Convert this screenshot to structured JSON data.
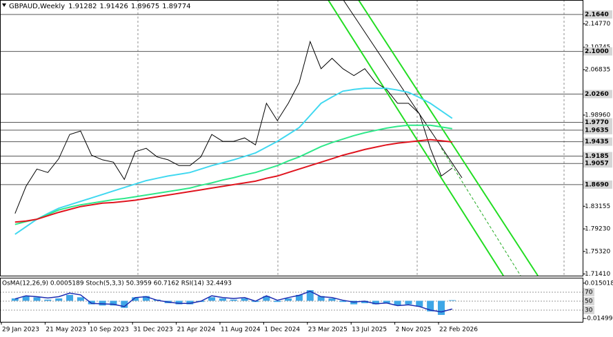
{
  "chart_data": [
    {
      "type": "line",
      "title": "GBPAUD,Weekly",
      "ohlc": [
        1.91282,
        1.91426,
        1.89675,
        1.89774
      ],
      "ylim": [
        1.7112,
        2.1891
      ],
      "yticks": [
        {
          "value": 2.1477,
          "label": "2.14770"
        },
        2.10745,
        2.06835,
        {
          "value": 1.9896,
          "label": "1.98960"
        },
        1.83155,
        {
          "value": 1.7923,
          "label": "1.79230"
        },
        {
          "value": 1.7532,
          "label": "1.75320"
        },
        {
          "value": 1.7141,
          "label": "1.71410"
        }
      ],
      "levels": [
        {
          "value": 2.164,
          "label": "2.1640"
        },
        {
          "value": 2.1,
          "label": "2.1000"
        },
        {
          "value": 2.026,
          "label": "2.0260"
        },
        {
          "value": 1.977,
          "label": "1.9770"
        },
        {
          "value": 1.9635,
          "label": "1.9635"
        },
        {
          "value": 1.9435,
          "label": "1.9435"
        },
        {
          "value": 1.9185,
          "label": "1.9185"
        },
        {
          "value": 1.9057,
          "label": "1.9057"
        },
        {
          "value": 1.869,
          "label": "1.8690"
        }
      ],
      "xticks": [
        "29 Jan 2023",
        "21 May 2023",
        "10 Sep 2023",
        "31 Dec 2023",
        "21 Apr 2024",
        "11 Aug 2024",
        "1 Dec 2024",
        "23 Mar 2025",
        "13 Jul 2025",
        "2 Nov 2025",
        "22 Feb 2026"
      ],
      "x": [
        "5 Mar 2023",
        "2 Apr 2023",
        "30 Apr 2023",
        "28 May 2023",
        "25 Jun 2023",
        "23 Jul 2023",
        "20 Aug 2023",
        "17 Sep 2023",
        "15 Oct 2023",
        "12 Nov 2023",
        "10 Dec 2023",
        "7 Jan 2024",
        "4 Feb 2024",
        "3 Mar 2024",
        "31 Mar 2024",
        "28 Apr 2024",
        "26 May 2024",
        "23 Jun 2024",
        "21 Jul 2024",
        "18 Aug 2024",
        "15 Sep 2024",
        "13 Oct 2024",
        "10 Nov 2024",
        "8 Dec 2024",
        "5 Jan 2025",
        "2 Feb 2025",
        "2 Mar 2025",
        "30 Mar 2025",
        "27 Apr 2025",
        "25 May 2025",
        "22 Jun 2025",
        "20 Jul 2025",
        "17 Aug 2025",
        "14 Sep 2025",
        "12 Oct 2025",
        "9 Nov 2025",
        "7 Dec 2025",
        "4 Jan 2026",
        "1 Feb 2026",
        "1 Mar 2026",
        "29 Mar 2026"
      ],
      "series": [
        {
          "color": "#000000",
          "values": [
            1.819,
            1.866,
            1.896,
            1.89,
            1.914,
            1.956,
            1.962,
            1.92,
            1.912,
            1.908,
            1.878,
            1.926,
            1.932,
            1.917,
            1.912,
            1.902,
            1.902,
            1.917,
            1.956,
            1.944,
            1.944,
            1.95,
            1.938,
            2.01,
            1.98,
            2.01,
            2.046,
            2.117,
            2.07,
            2.088,
            2.07,
            2.058,
            2.07,
            2.046,
            2.034,
            2.01,
            2.01,
            1.992,
            1.932,
            1.884,
            1.89774
          ]
        },
        {
          "color": "#40d8f0",
          "values": [
            1.783,
            1.796,
            1.809,
            1.819,
            1.828,
            1.834,
            1.84,
            1.846,
            1.852,
            1.858,
            1.864,
            1.87,
            1.876,
            1.88,
            1.884,
            1.887,
            1.89,
            1.896,
            1.902,
            1.907,
            1.912,
            1.918,
            1.924,
            1.934,
            1.944,
            1.956,
            1.968,
            1.989,
            2.01,
            2.021,
            2.031,
            2.034,
            2.036,
            2.036,
            2.036,
            2.033,
            2.029,
            2.02,
            2.01,
            1.997,
            1.984
          ]
        },
        {
          "color": "#2ee88a",
          "values": [
            1.8,
            1.805,
            1.809,
            1.817,
            1.825,
            1.83,
            1.834,
            1.837,
            1.84,
            1.843,
            1.845,
            1.848,
            1.851,
            1.854,
            1.857,
            1.86,
            1.863,
            1.868,
            1.872,
            1.877,
            1.881,
            1.886,
            1.89,
            1.896,
            1.902,
            1.91,
            1.917,
            1.926,
            1.935,
            1.942,
            1.948,
            1.954,
            1.959,
            1.963,
            1.967,
            1.97,
            1.972,
            1.972,
            1.972,
            1.969,
            1.966
          ]
        },
        {
          "color": "#e0141e",
          "values": [
            1.804,
            1.806,
            1.809,
            1.815,
            1.821,
            1.826,
            1.831,
            1.834,
            1.837,
            1.838,
            1.84,
            1.842,
            1.845,
            1.848,
            1.851,
            1.854,
            1.857,
            1.86,
            1.863,
            1.866,
            1.869,
            1.872,
            1.875,
            1.88,
            1.884,
            1.89,
            1.896,
            1.902,
            1.908,
            1.914,
            1.92,
            1.925,
            1.93,
            1.934,
            1.938,
            1.941,
            1.943,
            1.945,
            1.947,
            1.945,
            1.943
          ]
        }
      ]
    },
    {
      "type": "bar",
      "title": "OsMA(12,26,9) 0.0005189  Stoch(5,3,3) 50.3959 60.7162  RSI(14) 32.4493",
      "ylim": [
        -0.0179,
        0.0196
      ],
      "yticks": [
        0.015018,
        -0.014995
      ],
      "y2lim": [
        3.8,
        102.3
      ],
      "y2ticks": [
        70,
        50,
        30
      ],
      "grid": true,
      "series": [
        {
          "color": "#3ea6e6",
          "values": [
            0.002,
            0.004,
            0.003,
            0.001,
            0.002,
            0.005,
            0.003,
            -0.003,
            -0.004,
            -0.004,
            -0.006,
            0.003,
            0.004,
            0.001,
            -0.002,
            -0.003,
            -0.003,
            -0.001,
            0.003,
            0.002,
            0.001,
            0.002,
            -0.001,
            0.004,
            -0.001,
            0.002,
            0.005,
            0.009,
            0.004,
            0.002,
            -0.001,
            -0.003,
            -0.002,
            -0.003,
            -0.002,
            -0.004,
            -0.003,
            -0.005,
            -0.009,
            -0.012,
            0.0005189
          ]
        },
        {
          "color": "#1b2bb0",
          "axis": "y2",
          "values": [
            55,
            62,
            60,
            57,
            60,
            68,
            64,
            45,
            44,
            43,
            38,
            58,
            60,
            52,
            48,
            45,
            45,
            50,
            62,
            58,
            56,
            58,
            50,
            62,
            52,
            58,
            63,
            72,
            60,
            58,
            52,
            48,
            50,
            44,
            46,
            40,
            42,
            38,
            30,
            26,
            32.4493
          ]
        }
      ]
    }
  ]
}
